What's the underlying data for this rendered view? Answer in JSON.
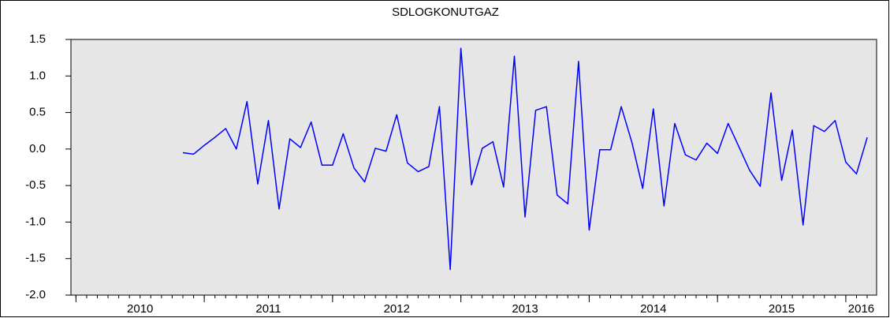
{
  "chart_data": {
    "type": "line",
    "title": "SDLOGKONUTGAZ",
    "x": [
      2010.833,
      2010.917,
      2011.0,
      2011.083,
      2011.167,
      2011.25,
      2011.333,
      2011.417,
      2011.5,
      2011.583,
      2011.667,
      2011.75,
      2011.833,
      2011.917,
      2012.0,
      2012.083,
      2012.167,
      2012.25,
      2012.333,
      2012.417,
      2012.5,
      2012.583,
      2012.667,
      2012.75,
      2012.833,
      2012.917,
      2013.0,
      2013.083,
      2013.167,
      2013.25,
      2013.333,
      2013.417,
      2013.5,
      2013.583,
      2013.667,
      2013.75,
      2013.833,
      2013.917,
      2014.0,
      2014.083,
      2014.167,
      2014.25,
      2014.333,
      2014.417,
      2014.5,
      2014.583,
      2014.667,
      2014.75,
      2014.833,
      2014.917,
      2015.0,
      2015.083,
      2015.167,
      2015.25,
      2015.333,
      2015.417,
      2015.5,
      2015.583,
      2015.667,
      2015.75,
      2015.833,
      2015.917,
      2016.0,
      2016.083,
      2016.167
    ],
    "series": [
      {
        "name": "SDLOGKONUTGAZ",
        "color": "#0000ff",
        "values": [
          -0.05,
          -0.07,
          0.05,
          0.16,
          0.28,
          0.0,
          0.65,
          -0.48,
          0.39,
          -0.82,
          0.14,
          0.02,
          0.37,
          -0.22,
          -0.22,
          0.21,
          -0.26,
          -0.45,
          0.01,
          -0.03,
          0.47,
          -0.19,
          -0.31,
          -0.24,
          0.58,
          -1.65,
          1.38,
          -0.49,
          0.01,
          0.1,
          -0.52,
          1.27,
          -0.93,
          0.53,
          0.58,
          -0.63,
          -0.75,
          1.2,
          -1.11,
          -0.01,
          -0.01,
          0.58,
          0.09,
          -0.54,
          0.55,
          -0.78,
          0.35,
          -0.08,
          -0.15,
          0.08,
          -0.06,
          0.35,
          0.03,
          -0.29,
          -0.51,
          0.77,
          -0.43,
          0.26,
          -1.04,
          0.32,
          0.24,
          0.39,
          -0.18,
          -0.34,
          0.16
        ]
      }
    ],
    "xlim": [
      2009.961,
      2016.24
    ],
    "xticks": [
      2010,
      2011,
      2012,
      2013,
      2014,
      2015,
      2016
    ],
    "ylim": [
      -2.0,
      1.5
    ],
    "yticks": [
      1.5,
      {
        "value": 1.0,
        "label": "1.0"
      },
      0.5,
      {
        "value": 0.0,
        "label": "0.0"
      },
      -0.5,
      {
        "value": -1.0,
        "label": "-1.0"
      },
      -1.5,
      {
        "value": -2.0,
        "label": "-2.0"
      }
    ],
    "background": "#e6e6e6",
    "grid": false
  }
}
